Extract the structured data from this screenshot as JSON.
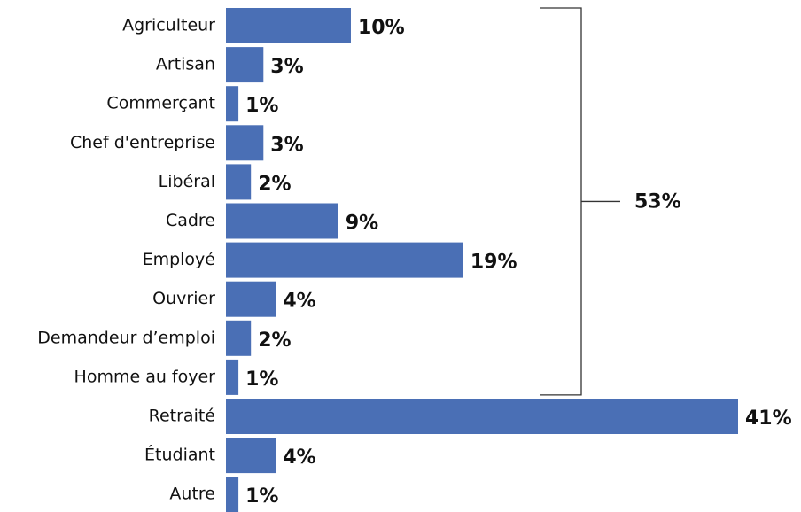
{
  "chart_data": {
    "type": "bar",
    "orientation": "horizontal",
    "categories": [
      "Agriculteur",
      "Artisan",
      "Commerçant",
      "Chef d'entreprise",
      "Libéral",
      "Cadre",
      "Employé",
      "Ouvrier",
      "Demandeur d’emploi",
      "Homme au foyer",
      "Retraité",
      "Étudiant",
      "Autre"
    ],
    "values": [
      10,
      3,
      1,
      3,
      2,
      9,
      19,
      4,
      2,
      1,
      41,
      4,
      1
    ],
    "value_labels": [
      "10%",
      "3%",
      "1%",
      "3%",
      "2%",
      "9%",
      "19%",
      "4%",
      "2%",
      "1%",
      "41%",
      "4%",
      "1%"
    ],
    "color": "#4a6fb5",
    "annotation": "53%"
  }
}
